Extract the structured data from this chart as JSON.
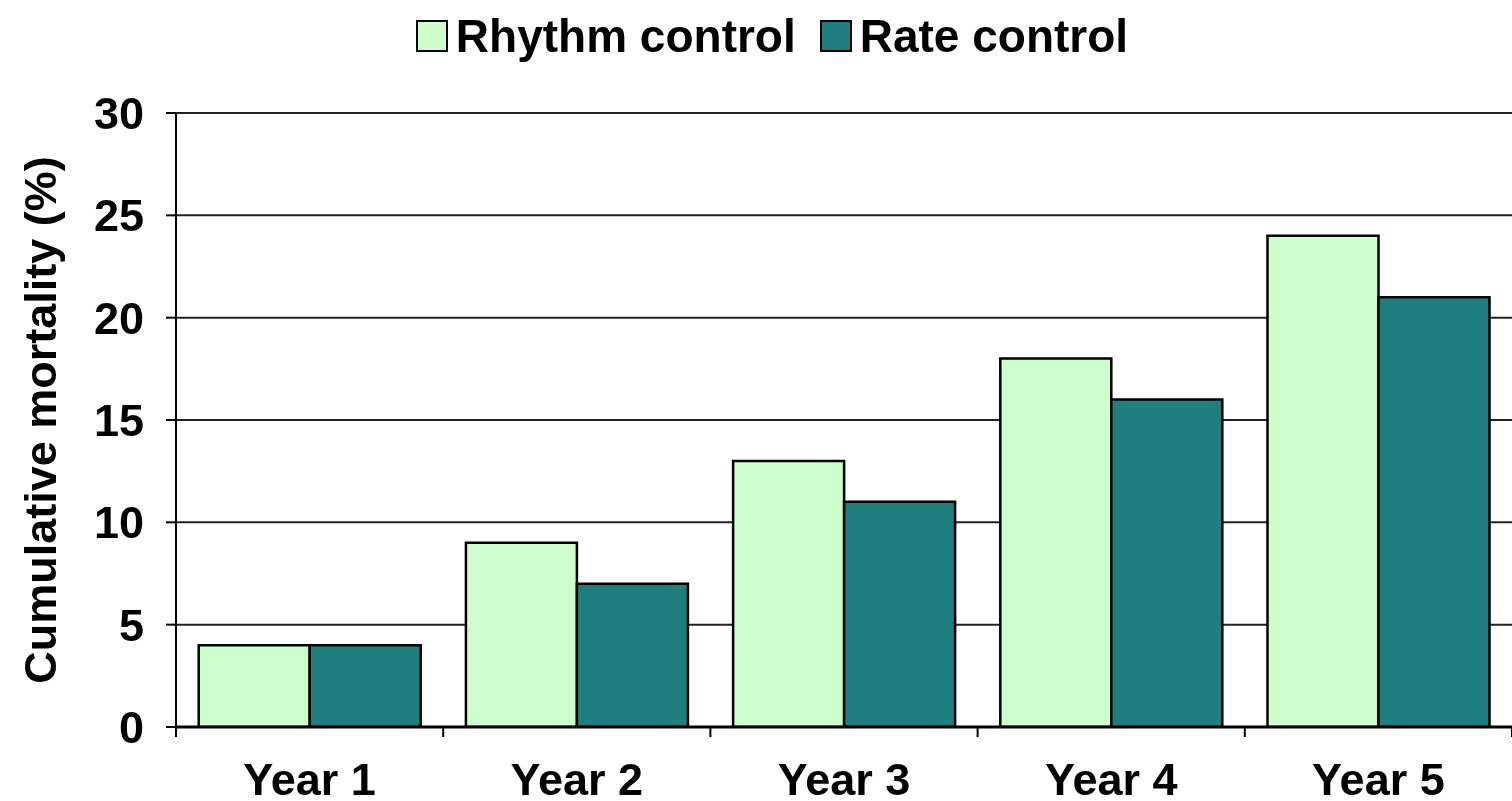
{
  "chart_data": {
    "type": "bar",
    "ylabel": "Cumulative mortality (%)",
    "categories": [
      "Year 1",
      "Year 2",
      "Year 3",
      "Year 4",
      "Year 5"
    ],
    "series": [
      {
        "name": "Rhythm control",
        "color": "#ccffcc",
        "values": [
          4,
          9,
          13,
          18,
          24
        ]
      },
      {
        "name": "Rate control",
        "color": "#1f7f7f",
        "values": [
          4,
          7,
          11,
          16,
          21
        ]
      }
    ],
    "ylim": [
      0,
      30
    ],
    "yticks": [
      0,
      5,
      10,
      15,
      20,
      25,
      30
    ],
    "grid": "y",
    "legend": "top"
  }
}
